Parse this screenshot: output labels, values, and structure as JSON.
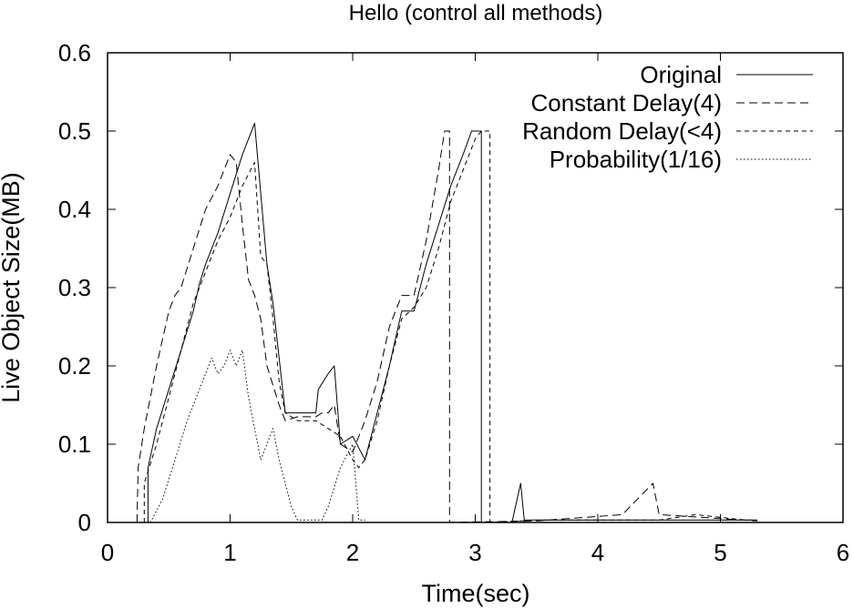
{
  "chart_data": {
    "type": "line",
    "title": "Hello (control all methods)",
    "xlabel": "Time(sec)",
    "ylabel": "Live Object Size(MB)",
    "xlim": [
      0,
      6
    ],
    "ylim": [
      0,
      0.6
    ],
    "xticks": [
      "0",
      "1",
      "2",
      "3",
      "4",
      "5",
      "6"
    ],
    "yticks": [
      "0",
      "0.1",
      "0.2",
      "0.3",
      "0.4",
      "0.5",
      "0.6"
    ],
    "grid": false,
    "legend_position": "top-right",
    "series": [
      {
        "name": "Original",
        "dash": "solid",
        "points": [
          [
            0.33,
            0
          ],
          [
            0.33,
            0.07
          ],
          [
            0.4,
            0.12
          ],
          [
            0.5,
            0.17
          ],
          [
            0.6,
            0.22
          ],
          [
            0.7,
            0.27
          ],
          [
            0.75,
            0.305
          ],
          [
            0.8,
            0.33
          ],
          [
            0.9,
            0.37
          ],
          [
            1.0,
            0.42
          ],
          [
            1.1,
            0.47
          ],
          [
            1.2,
            0.51
          ],
          [
            1.3,
            0.33
          ],
          [
            1.35,
            0.28
          ],
          [
            1.45,
            0.14
          ],
          [
            1.6,
            0.14
          ],
          [
            1.7,
            0.14
          ],
          [
            1.72,
            0.17
          ],
          [
            1.8,
            0.19
          ],
          [
            1.85,
            0.2
          ],
          [
            1.9,
            0.1
          ],
          [
            2.0,
            0.11
          ],
          [
            2.1,
            0.08
          ],
          [
            2.2,
            0.14
          ],
          [
            2.3,
            0.2
          ],
          [
            2.4,
            0.27
          ],
          [
            2.5,
            0.27
          ],
          [
            2.6,
            0.33
          ],
          [
            2.7,
            0.38
          ],
          [
            2.8,
            0.43
          ],
          [
            2.9,
            0.47
          ],
          [
            2.97,
            0.5
          ],
          [
            3.05,
            0.5
          ],
          [
            3.05,
            0.0
          ],
          [
            3.3,
            0.0
          ],
          [
            3.37,
            0.05
          ],
          [
            3.4,
            0.003
          ],
          [
            4.0,
            0.003
          ],
          [
            5.0,
            0.003
          ],
          [
            5.3,
            0.003
          ]
        ]
      },
      {
        "name": "Constant Delay(4)",
        "dash": "long",
        "points": [
          [
            0.24,
            0
          ],
          [
            0.25,
            0.07
          ],
          [
            0.3,
            0.12
          ],
          [
            0.4,
            0.2
          ],
          [
            0.5,
            0.27
          ],
          [
            0.55,
            0.29
          ],
          [
            0.6,
            0.3
          ],
          [
            0.7,
            0.35
          ],
          [
            0.8,
            0.4
          ],
          [
            0.9,
            0.43
          ],
          [
            1.0,
            0.47
          ],
          [
            1.05,
            0.46
          ],
          [
            1.1,
            0.38
          ],
          [
            1.15,
            0.31
          ],
          [
            1.2,
            0.29
          ],
          [
            1.25,
            0.26
          ],
          [
            1.3,
            0.2
          ],
          [
            1.4,
            0.15
          ],
          [
            1.45,
            0.13
          ],
          [
            1.55,
            0.135
          ],
          [
            1.7,
            0.135
          ],
          [
            1.75,
            0.14
          ],
          [
            1.8,
            0.14
          ],
          [
            1.85,
            0.15
          ],
          [
            1.9,
            0.1
          ],
          [
            2.0,
            0.09
          ],
          [
            2.1,
            0.13
          ],
          [
            2.2,
            0.18
          ],
          [
            2.3,
            0.25
          ],
          [
            2.4,
            0.29
          ],
          [
            2.5,
            0.29
          ],
          [
            2.6,
            0.36
          ],
          [
            2.7,
            0.45
          ],
          [
            2.75,
            0.5
          ],
          [
            2.79,
            0.5
          ],
          [
            2.79,
            0.0
          ],
          [
            3.5,
            0.002
          ],
          [
            4.2,
            0.01
          ],
          [
            4.45,
            0.05
          ],
          [
            4.5,
            0.01
          ],
          [
            5.3,
            0.002
          ]
        ]
      },
      {
        "name": "Random Delay(<4)",
        "dash": "short",
        "points": [
          [
            0.3,
            0
          ],
          [
            0.3,
            0.05
          ],
          [
            0.4,
            0.1
          ],
          [
            0.5,
            0.16
          ],
          [
            0.6,
            0.22
          ],
          [
            0.7,
            0.28
          ],
          [
            0.8,
            0.32
          ],
          [
            0.9,
            0.36
          ],
          [
            1.0,
            0.39
          ],
          [
            1.1,
            0.43
          ],
          [
            1.2,
            0.46
          ],
          [
            1.25,
            0.34
          ],
          [
            1.3,
            0.33
          ],
          [
            1.35,
            0.26
          ],
          [
            1.4,
            0.18
          ],
          [
            1.45,
            0.14
          ],
          [
            1.55,
            0.13
          ],
          [
            1.7,
            0.13
          ],
          [
            1.8,
            0.12
          ],
          [
            1.9,
            0.11
          ],
          [
            2.0,
            0.08
          ],
          [
            2.05,
            0.07
          ],
          [
            2.1,
            0.08
          ],
          [
            2.2,
            0.13
          ],
          [
            2.3,
            0.2
          ],
          [
            2.4,
            0.26
          ],
          [
            2.5,
            0.275
          ],
          [
            2.6,
            0.3
          ],
          [
            2.7,
            0.35
          ],
          [
            2.8,
            0.41
          ],
          [
            2.9,
            0.45
          ],
          [
            3.0,
            0.49
          ],
          [
            3.05,
            0.5
          ],
          [
            3.12,
            0.5
          ],
          [
            3.12,
            0.0
          ],
          [
            3.5,
            0.003
          ],
          [
            4.5,
            0.003
          ],
          [
            4.8,
            0.01
          ],
          [
            5.2,
            0.003
          ],
          [
            5.3,
            0.003
          ]
        ]
      },
      {
        "name": "Probability(1/16)",
        "dash": "dotted",
        "points": [
          [
            0.35,
            0
          ],
          [
            0.45,
            0.03
          ],
          [
            0.55,
            0.08
          ],
          [
            0.65,
            0.13
          ],
          [
            0.75,
            0.17
          ],
          [
            0.8,
            0.19
          ],
          [
            0.85,
            0.21
          ],
          [
            0.9,
            0.19
          ],
          [
            0.95,
            0.2
          ],
          [
            1.0,
            0.22
          ],
          [
            1.05,
            0.2
          ],
          [
            1.1,
            0.22
          ],
          [
            1.15,
            0.16
          ],
          [
            1.2,
            0.12
          ],
          [
            1.25,
            0.08
          ],
          [
            1.3,
            0.1
          ],
          [
            1.35,
            0.12
          ],
          [
            1.4,
            0.08
          ],
          [
            1.45,
            0.05
          ],
          [
            1.5,
            0.02
          ],
          [
            1.55,
            0.003
          ],
          [
            1.75,
            0.003
          ],
          [
            1.8,
            0.02
          ],
          [
            1.9,
            0.07
          ],
          [
            2.0,
            0.1
          ],
          [
            2.05,
            0.003
          ],
          [
            2.1,
            0.003
          ]
        ]
      }
    ]
  }
}
